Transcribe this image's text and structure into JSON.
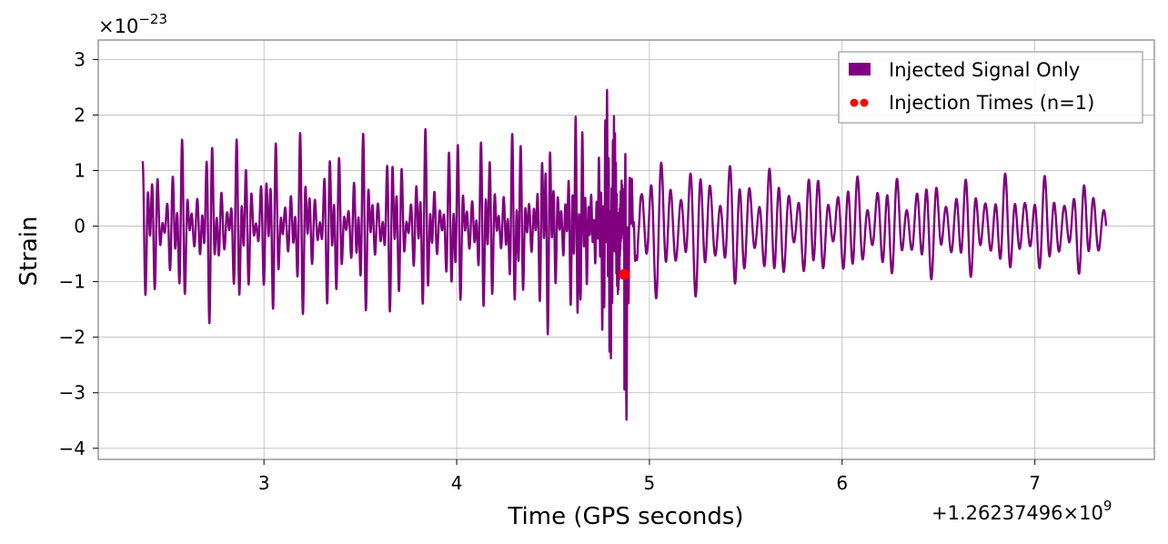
{
  "chart_data": {
    "type": "line",
    "xlabel": "Time (GPS seconds)",
    "ylabel": "Strain",
    "x_offset_text": "+1.26237496×10",
    "x_offset_exp": "9",
    "y_scale_text": "×10",
    "y_scale_exp": "−23",
    "xlim": [
      2.14,
      7.62
    ],
    "ylim": [
      -4.2,
      3.35
    ],
    "x_ticks": [
      3,
      4,
      5,
      6,
      7
    ],
    "x_tick_labels": [
      "3",
      "4",
      "5",
      "6",
      "7"
    ],
    "y_ticks": [
      3,
      2,
      1,
      0,
      -1,
      -2,
      -3,
      -4
    ],
    "y_tick_labels": [
      "3",
      "2",
      "1",
      "0",
      "−1",
      "−2",
      "−3",
      "−4"
    ],
    "grid": true,
    "legend_position": "top-right",
    "series": [
      {
        "name": "Injected Signal Only",
        "kind": "line",
        "color": "#800080",
        "x_range": [
          2.37,
          7.37
        ],
        "merger_time": 4.87,
        "chirp_amplitude": [
          [
            2.37,
            1.6
          ],
          [
            2.8,
            1.8
          ],
          [
            3.5,
            1.75
          ],
          [
            4.2,
            1.8
          ],
          [
            4.6,
            2.1
          ],
          [
            4.75,
            2.4
          ],
          [
            4.84,
            2.9
          ],
          [
            4.87,
            3.9
          ],
          [
            4.9,
            1.4
          ],
          [
            5.3,
            1.3
          ],
          [
            6.0,
            1.05
          ],
          [
            7.37,
            0.9
          ]
        ]
      },
      {
        "name": "Injection Times (n=1)",
        "kind": "scatter",
        "color": "#ff0000",
        "x": [
          4.87
        ],
        "y": [
          -0.87
        ]
      }
    ]
  }
}
